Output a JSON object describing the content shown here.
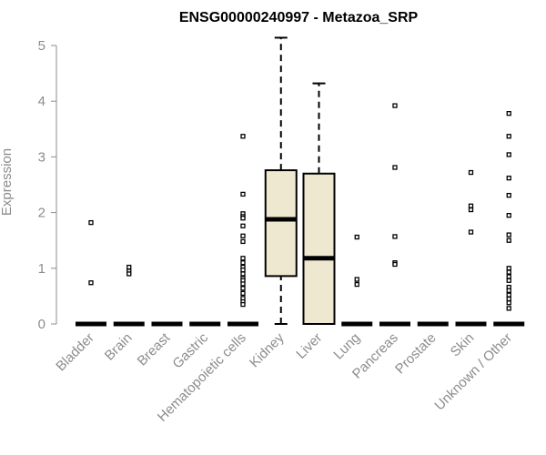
{
  "chart_data": {
    "type": "box",
    "title": "ENSG00000240997 - Metazoa_SRP",
    "xlabel": "",
    "ylabel": "Expression",
    "ylim": [
      0,
      5
    ],
    "yticks": [
      0,
      1,
      2,
      3,
      4,
      5
    ],
    "grid": false,
    "legend": "none",
    "box_fill": "#efe8d0",
    "axis_color": "#8c8c8c",
    "categories": [
      "Bladder",
      "Brain",
      "Breast",
      "Gastric",
      "Hematopoietic cells",
      "Kidney",
      "Liver",
      "Lung",
      "Pancreas",
      "Prostate",
      "Skin",
      "Unknown / Other"
    ],
    "boxes": [
      {
        "category": "Bladder",
        "whisker_low": 0,
        "q1": 0,
        "median": 0,
        "q3": 0,
        "whisker_high": 0,
        "outliers": [
          1.82,
          0.74
        ]
      },
      {
        "category": "Brain",
        "whisker_low": 0,
        "q1": 0,
        "median": 0,
        "q3": 0,
        "whisker_high": 0,
        "outliers": [
          1.02,
          0.95,
          0.9
        ]
      },
      {
        "category": "Breast",
        "whisker_low": 0,
        "q1": 0,
        "median": 0,
        "q3": 0,
        "whisker_high": 0,
        "outliers": []
      },
      {
        "category": "Gastric",
        "whisker_low": 0,
        "q1": 0,
        "median": 0,
        "q3": 0,
        "whisker_high": 0,
        "outliers": []
      },
      {
        "category": "Hematopoietic cells",
        "whisker_low": 0,
        "q1": 0,
        "median": 0,
        "q3": 0,
        "whisker_high": 0,
        "outliers": [
          3.37,
          2.33,
          1.98,
          1.93,
          1.9,
          1.76,
          1.58,
          1.48,
          1.18,
          1.1,
          1.02,
          0.97,
          0.9,
          0.82,
          0.78,
          0.72,
          0.64,
          0.55,
          0.46,
          0.4,
          0.35
        ]
      },
      {
        "category": "Kidney",
        "whisker_low": 0,
        "q1": 0.86,
        "median": 1.88,
        "q3": 2.76,
        "whisker_high": 5.14,
        "outliers": []
      },
      {
        "category": "Liver",
        "whisker_low": 0,
        "q1": 0,
        "median": 1.18,
        "q3": 2.7,
        "whisker_high": 4.32,
        "outliers": []
      },
      {
        "category": "Lung",
        "whisker_low": 0,
        "q1": 0,
        "median": 0,
        "q3": 0,
        "whisker_high": 0,
        "outliers": [
          1.56,
          0.8,
          0.71
        ]
      },
      {
        "category": "Pancreas",
        "whisker_low": 0,
        "q1": 0,
        "median": 0,
        "q3": 0,
        "whisker_high": 0,
        "outliers": [
          3.92,
          2.81,
          1.57,
          1.1,
          1.07
        ]
      },
      {
        "category": "Prostate",
        "whisker_low": 0,
        "q1": 0,
        "median": 0,
        "q3": 0,
        "whisker_high": 0,
        "outliers": []
      },
      {
        "category": "Skin",
        "whisker_low": 0,
        "q1": 0,
        "median": 0,
        "q3": 0,
        "whisker_high": 0,
        "outliers": [
          2.72,
          2.12,
          2.05,
          1.65
        ]
      },
      {
        "category": "Unknown / Other",
        "whisker_low": 0,
        "q1": 0,
        "median": 0,
        "q3": 0,
        "whisker_high": 0,
        "outliers": [
          3.78,
          3.37,
          3.04,
          2.62,
          2.31,
          1.95,
          1.6,
          1.5,
          1.0,
          0.93,
          0.85,
          0.78,
          0.66,
          0.6,
          0.52,
          0.45,
          0.38,
          0.28
        ]
      }
    ]
  }
}
